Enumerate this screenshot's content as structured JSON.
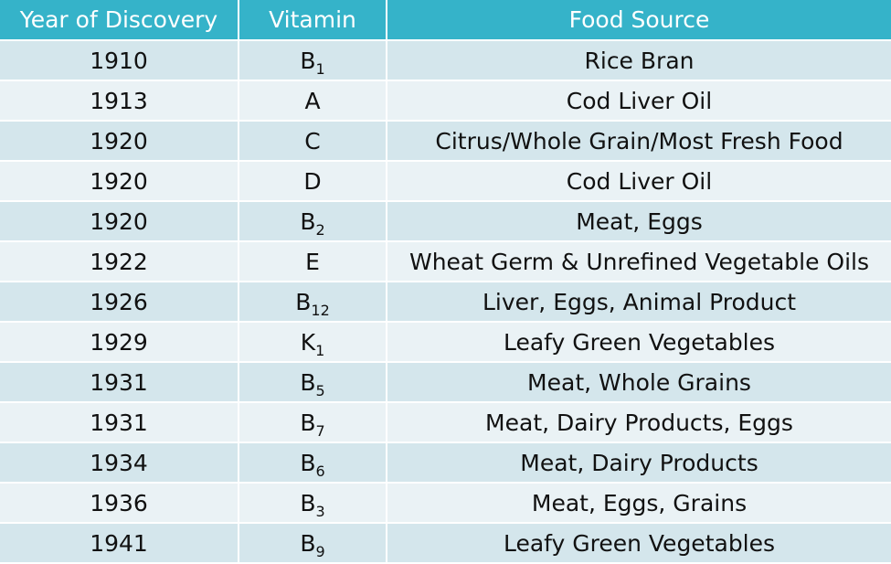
{
  "headers": [
    "Year of Discovery",
    "Vitamin",
    "Food Source"
  ],
  "rows": [
    {
      "year": "1910",
      "vitamin": "B",
      "sub": "1",
      "food": "Rice Bran"
    },
    {
      "year": "1913",
      "vitamin": "A",
      "sub": "",
      "food": "Cod Liver Oil"
    },
    {
      "year": "1920",
      "vitamin": "C",
      "sub": "",
      "food": "Citrus/Whole Grain/Most Fresh Food"
    },
    {
      "year": "1920",
      "vitamin": "D",
      "sub": "",
      "food": "Cod Liver Oil"
    },
    {
      "year": "1920",
      "vitamin": "B",
      "sub": "2",
      "food": "Meat, Eggs"
    },
    {
      "year": "1922",
      "vitamin": "E",
      "sub": "",
      "food": "Wheat Germ & Unrefined Vegetable Oils"
    },
    {
      "year": "1926",
      "vitamin": "B",
      "sub": "12",
      "food": "Liver, Eggs, Animal Product"
    },
    {
      "year": "1929",
      "vitamin": "K",
      "sub": "1",
      "food": "Leafy Green Vegetables"
    },
    {
      "year": "1931",
      "vitamin": "B",
      "sub": "5",
      "food": "Meat, Whole Grains"
    },
    {
      "year": "1931",
      "vitamin": "B",
      "sub": "7",
      "food": "Meat, Dairy Products, Eggs"
    },
    {
      "year": "1934",
      "vitamin": "B",
      "sub": "6",
      "food": "Meat, Dairy Products"
    },
    {
      "year": "1936",
      "vitamin": "B",
      "sub": "3",
      "food": "Meat, Eggs, Grains"
    },
    {
      "year": "1941",
      "vitamin": "B",
      "sub": "9",
      "food": "Leafy Green Vegetables"
    }
  ],
  "colors": {
    "header_bg": "#35b3c9",
    "row_odd": "#d4e6ec",
    "row_even": "#eaf2f5"
  }
}
